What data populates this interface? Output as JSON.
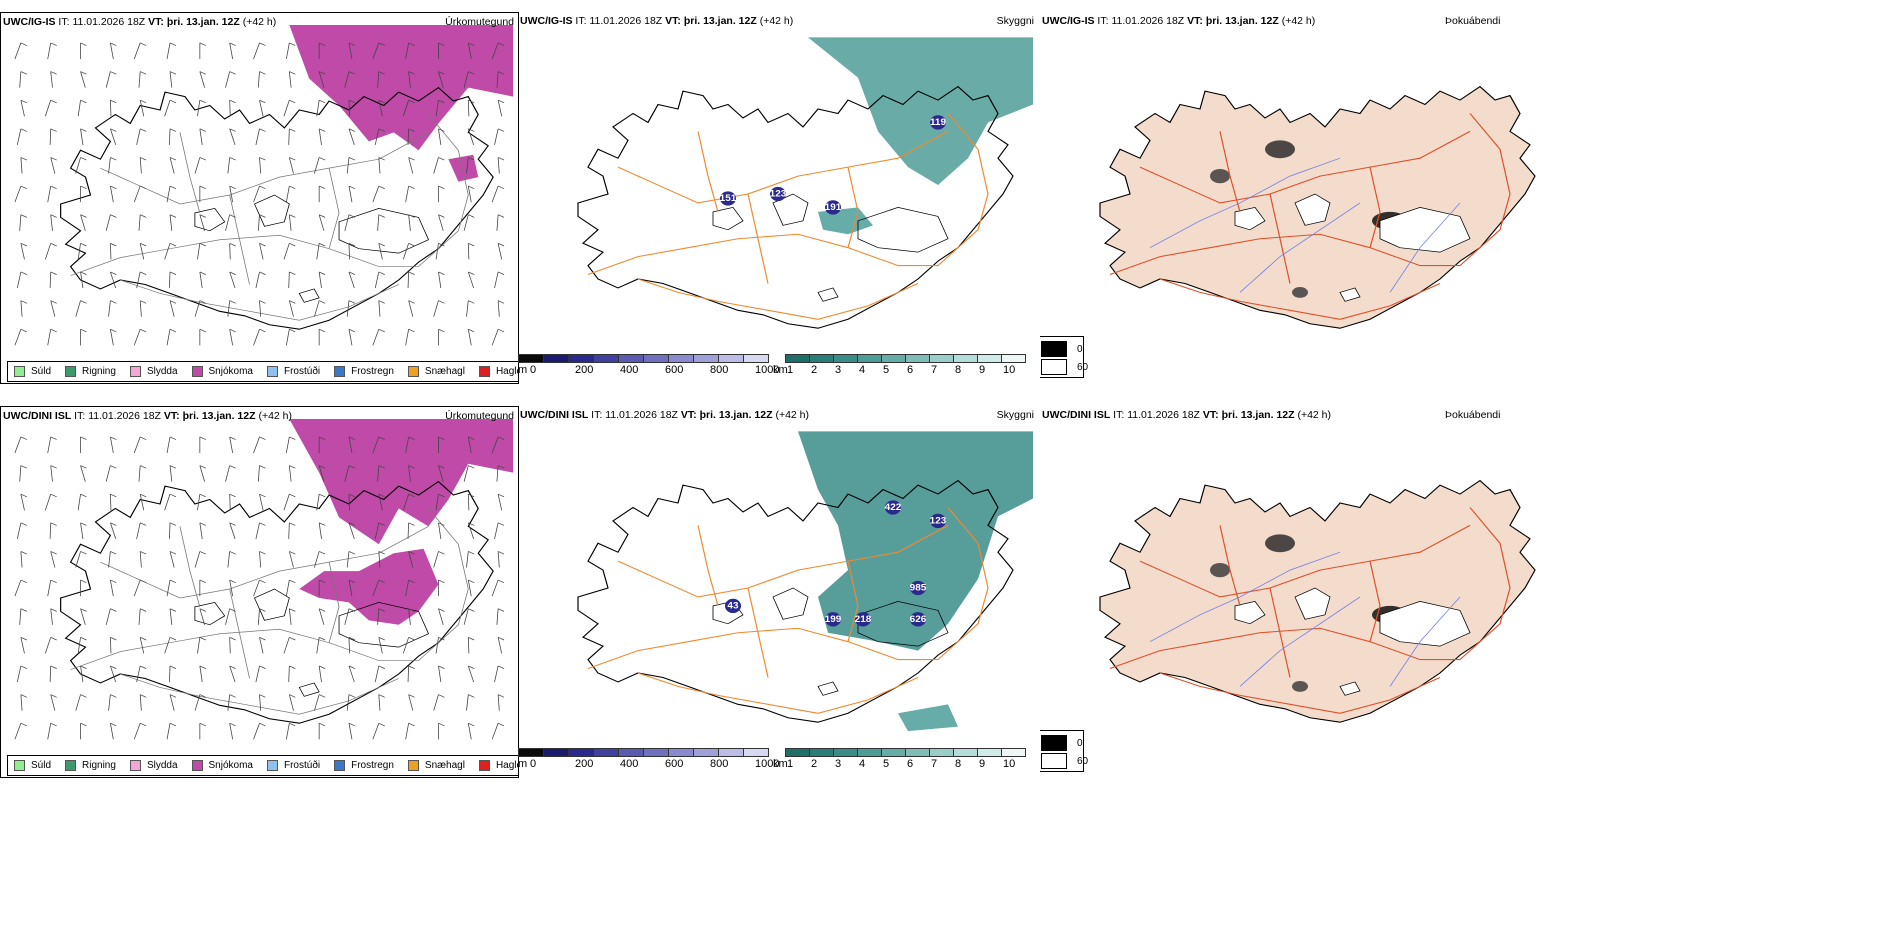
{
  "rows": [
    {
      "model": "UWC/IG-IS",
      "it_label": "IT:",
      "it_value": "11.01.2026 18Z",
      "vt_label": "VT:",
      "vt_value": "þri. 13.jan. 12Z",
      "lead": "(+42 h)",
      "panels": {
        "precip": {
          "label": "Úrkomutegund"
        },
        "visibility": {
          "label": "Skyggni",
          "points": [
            "119",
            "123",
            "151",
            "191"
          ]
        },
        "fog": {
          "label": "Þokuábendi"
        }
      }
    },
    {
      "model": "UWC/DINI ISL",
      "it_label": "IT:",
      "it_value": "11.01.2026 18Z",
      "vt_label": "VT:",
      "vt_value": "þri. 13.jan. 12Z",
      "lead": "(+42 h)",
      "panels": {
        "precip": {
          "label": "Úrkomutegund"
        },
        "visibility": {
          "label": "Skyggni",
          "points": [
            "422",
            "123",
            "43",
            "985",
            "199",
            "218",
            "626"
          ]
        },
        "fog": {
          "label": "Þokuábendi"
        }
      }
    }
  ],
  "precip_legend": [
    {
      "name": "Súld",
      "color": "#90ee90"
    },
    {
      "name": "Rigning",
      "color": "#3c9a6b"
    },
    {
      "name": "Slydda",
      "color": "#f4a6d7"
    },
    {
      "name": "Snjókoma",
      "color": "#c04aa8"
    },
    {
      "name": "Frostúði",
      "color": "#90c0f0"
    },
    {
      "name": "Frostregn",
      "color": "#3c78c8"
    },
    {
      "name": "Snæhagl",
      "color": "#f0a020"
    },
    {
      "name": "Haglél",
      "color": "#e02020"
    }
  ],
  "colorbar_m": {
    "unit": "m",
    "ticks": [
      "0",
      "200",
      "400",
      "600",
      "800",
      "1000"
    ],
    "colors": [
      "#0a0a0a",
      "#1a1a6e",
      "#2a2a8e",
      "#4040a0",
      "#5a5ab0",
      "#7070c0",
      "#8a8ad0",
      "#a0a0d8",
      "#bcbce6",
      "#d8d8f2"
    ]
  },
  "colorbar_km": {
    "unit": "km",
    "ticks": [
      "1",
      "2",
      "3",
      "4",
      "5",
      "6",
      "7",
      "8",
      "9",
      "10"
    ],
    "colors": [
      "#1e6e6a",
      "#2a7e7a",
      "#3a8c88",
      "#4e9c98",
      "#66aca8",
      "#80bcb8",
      "#9accc8",
      "#b4dcd8",
      "#d0eae8",
      "#eef7f6"
    ]
  },
  "fog_legend": [
    {
      "value": "0",
      "color": "#000000"
    },
    {
      "value": "60",
      "color": "#ffffff"
    }
  ]
}
